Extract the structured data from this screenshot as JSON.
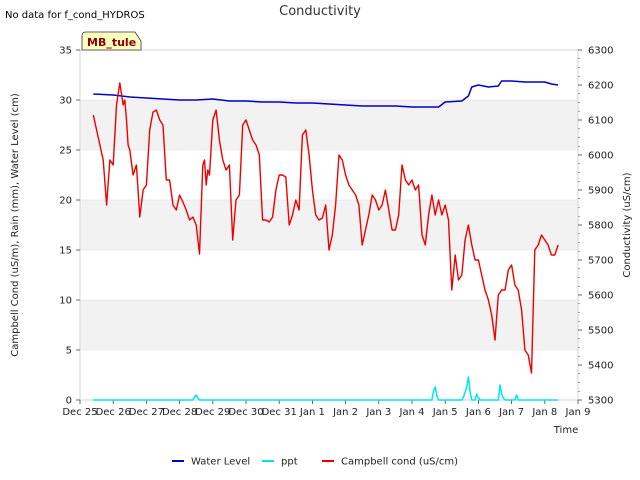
{
  "note": "No data for f_cond_HYDROS",
  "badge": "MB_tule",
  "chart_data": {
    "type": "line",
    "title": "Conductivity",
    "xlabel": "Time",
    "ylabel": "Campbell Cond (uS/m), Rain (mm), Water Level (cm)",
    "y2label": "Conductivity (uS/cm)",
    "ylim": [
      0,
      35
    ],
    "y2lim": [
      5300,
      6300
    ],
    "xlim": [
      0,
      15
    ],
    "yticks": [
      0,
      5,
      10,
      15,
      20,
      25,
      30,
      35
    ],
    "y2ticks": [
      5300,
      5400,
      5500,
      5600,
      5700,
      5800,
      5900,
      6000,
      6100,
      6200,
      6300
    ],
    "x_tick_labels": [
      "Dec 25",
      "Dec 26",
      "Dec 27",
      "Dec 28",
      "Dec 29",
      "Dec 30",
      "Dec 31",
      "Jan 1",
      "Jan 2",
      "Jan 3",
      "Jan 4",
      "Jan 5",
      "Jan 6",
      "Jan 7",
      "Jan 8",
      "Jan 9"
    ],
    "grid_bands": true,
    "legend_position": "bottom",
    "series": [
      {
        "name": "Water Level",
        "color": "#0000cc",
        "axis": "left",
        "x": [
          0.4,
          1.0,
          1.5,
          2.0,
          2.5,
          3.0,
          3.5,
          4.0,
          4.5,
          5.0,
          5.5,
          6.0,
          6.5,
          7.0,
          7.5,
          8.0,
          8.5,
          9.0,
          9.5,
          10.0,
          10.5,
          10.8,
          11.0,
          11.5,
          11.7,
          11.8,
          12.0,
          12.3,
          12.6,
          12.7,
          13.0,
          13.4,
          13.6,
          14.0,
          14.2,
          14.4
        ],
        "values": [
          30.6,
          30.5,
          30.3,
          30.2,
          30.1,
          30.0,
          30.0,
          30.1,
          29.9,
          29.9,
          29.8,
          29.8,
          29.7,
          29.7,
          29.6,
          29.5,
          29.4,
          29.4,
          29.4,
          29.3,
          29.3,
          29.3,
          29.8,
          29.9,
          30.4,
          31.3,
          31.5,
          31.3,
          31.4,
          31.9,
          31.9,
          31.8,
          31.8,
          31.8,
          31.6,
          31.5
        ]
      },
      {
        "name": "ppt",
        "color": "#00e5ee",
        "axis": "left",
        "x": [
          0.4,
          3.4,
          3.45,
          3.5,
          3.55,
          3.6,
          10.6,
          10.65,
          10.7,
          10.75,
          10.8,
          11.0,
          11.5,
          11.55,
          11.6,
          11.65,
          11.7,
          11.75,
          11.8,
          11.9,
          11.95,
          12.0,
          12.05,
          12.1,
          12.6,
          12.65,
          12.7,
          12.75,
          12.8,
          13.1,
          13.15,
          13.2,
          14.4
        ],
        "values": [
          0,
          0,
          0.3,
          0.5,
          0.2,
          0,
          0,
          0.9,
          1.3,
          0.4,
          0,
          0,
          0,
          0.3,
          0.8,
          1.3,
          2.3,
          0.8,
          0,
          0,
          0.6,
          0.2,
          0,
          0,
          0,
          1.5,
          0.6,
          0.2,
          0,
          0,
          0.5,
          0,
          0
        ]
      },
      {
        "name": "Campbell cond (uS/cm)",
        "color": "#ee0000",
        "axis": "left",
        "x": [
          0.4,
          0.6,
          0.7,
          0.8,
          0.9,
          1.0,
          1.1,
          1.2,
          1.3,
          1.35,
          1.4,
          1.45,
          1.5,
          1.6,
          1.7,
          1.8,
          1.9,
          2.0,
          2.1,
          2.2,
          2.3,
          2.4,
          2.5,
          2.6,
          2.7,
          2.8,
          2.9,
          3.0,
          3.1,
          3.2,
          3.3,
          3.4,
          3.5,
          3.6,
          3.7,
          3.75,
          3.8,
          3.85,
          3.9,
          4.0,
          4.1,
          4.2,
          4.3,
          4.4,
          4.5,
          4.6,
          4.7,
          4.8,
          4.9,
          5.0,
          5.1,
          5.2,
          5.3,
          5.4,
          5.5,
          5.6,
          5.7,
          5.8,
          5.9,
          6.0,
          6.1,
          6.2,
          6.3,
          6.4,
          6.5,
          6.6,
          6.7,
          6.8,
          6.9,
          7.0,
          7.1,
          7.2,
          7.3,
          7.4,
          7.5,
          7.6,
          7.7,
          7.8,
          7.9,
          8.0,
          8.1,
          8.2,
          8.3,
          8.4,
          8.5,
          8.6,
          8.7,
          8.8,
          8.9,
          9.0,
          9.1,
          9.2,
          9.3,
          9.4,
          9.5,
          9.6,
          9.7,
          9.8,
          9.9,
          10.0,
          10.1,
          10.2,
          10.3,
          10.4,
          10.5,
          10.6,
          10.7,
          10.8,
          10.9,
          11.0,
          11.1,
          11.2,
          11.3,
          11.4,
          11.5,
          11.6,
          11.7,
          11.8,
          11.9,
          12.0,
          12.1,
          12.2,
          12.3,
          12.4,
          12.5,
          12.6,
          12.7,
          12.8,
          12.9,
          13.0,
          13.1,
          13.2,
          13.3,
          13.4,
          13.5,
          13.6,
          13.7,
          13.8,
          13.9,
          14.0,
          14.1,
          14.2,
          14.3,
          14.4
        ],
        "values": [
          28.5,
          25.5,
          24.0,
          19.5,
          24.0,
          23.5,
          29.5,
          31.7,
          29.5,
          30.0,
          28.0,
          25.5,
          25.0,
          22.5,
          23.5,
          18.3,
          21.0,
          21.5,
          27.0,
          28.8,
          29.0,
          28.0,
          27.5,
          22.0,
          22.0,
          19.5,
          19.0,
          20.5,
          19.8,
          19.0,
          18.0,
          18.3,
          17.5,
          14.6,
          23.5,
          24.0,
          21.5,
          23.0,
          22.5,
          28.0,
          29.0,
          26.0,
          24.0,
          23.0,
          23.5,
          16.0,
          20.0,
          20.5,
          27.5,
          28.0,
          27.0,
          26.0,
          25.5,
          24.5,
          18.0,
          18.0,
          17.8,
          18.3,
          21.0,
          22.5,
          22.5,
          22.3,
          17.5,
          18.5,
          20.0,
          19.0,
          26.5,
          27.0,
          24.5,
          21.0,
          18.5,
          18.0,
          18.2,
          19.5,
          15.0,
          16.5,
          19.5,
          24.5,
          24.0,
          22.5,
          21.5,
          21.0,
          20.5,
          19.5,
          15.5,
          17.0,
          18.5,
          20.5,
          20.0,
          19.0,
          19.5,
          21.0,
          19.0,
          17.0,
          17.0,
          18.5,
          23.5,
          22.0,
          21.5,
          22.0,
          21.0,
          21.5,
          16.5,
          15.5,
          18.5,
          20.5,
          18.5,
          20.0,
          18.5,
          19.5,
          18.0,
          11.0,
          14.5,
          12.0,
          12.5,
          16.0,
          17.5,
          15.5,
          14.0,
          14.0,
          12.5,
          11.0,
          10.0,
          8.5,
          6.0,
          10.5,
          11.0,
          11.0,
          13.0,
          13.5,
          11.5,
          11.0,
          9.0,
          5.0,
          4.5,
          2.7,
          15.0,
          15.5,
          16.5,
          16.0,
          15.5,
          14.5,
          14.5,
          15.5
        ]
      }
    ]
  }
}
